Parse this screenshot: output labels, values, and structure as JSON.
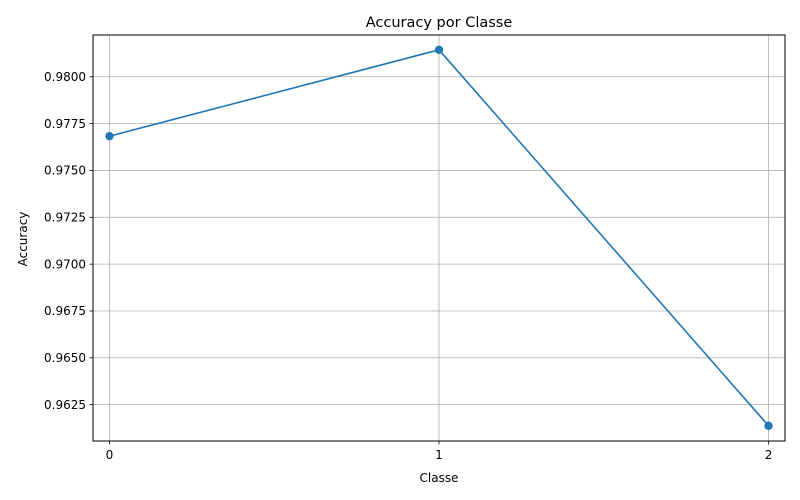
{
  "chart_data": {
    "type": "line",
    "title": "Accuracy por Classe",
    "xlabel": "Classe",
    "ylabel": "Accuracy",
    "x": [
      0,
      1,
      2
    ],
    "x_tick_labels": [
      "0",
      "1",
      "2"
    ],
    "y_ticks": [
      0.9625,
      0.965,
      0.9675,
      0.97,
      0.9725,
      0.975,
      0.9775,
      0.98
    ],
    "y_tick_labels": [
      "0.9625",
      "0.9650",
      "0.9675",
      "0.9700",
      "0.9725",
      "0.9750",
      "0.9775",
      "0.9800"
    ],
    "xlim": [
      -0.05,
      2.05
    ],
    "ylim": [
      0.96056,
      0.98223
    ],
    "grid": true,
    "marker": "circle",
    "series": [
      {
        "values": [
          0.97683,
          0.98144,
          0.96137
        ],
        "color": "#1f77b4"
      }
    ]
  }
}
